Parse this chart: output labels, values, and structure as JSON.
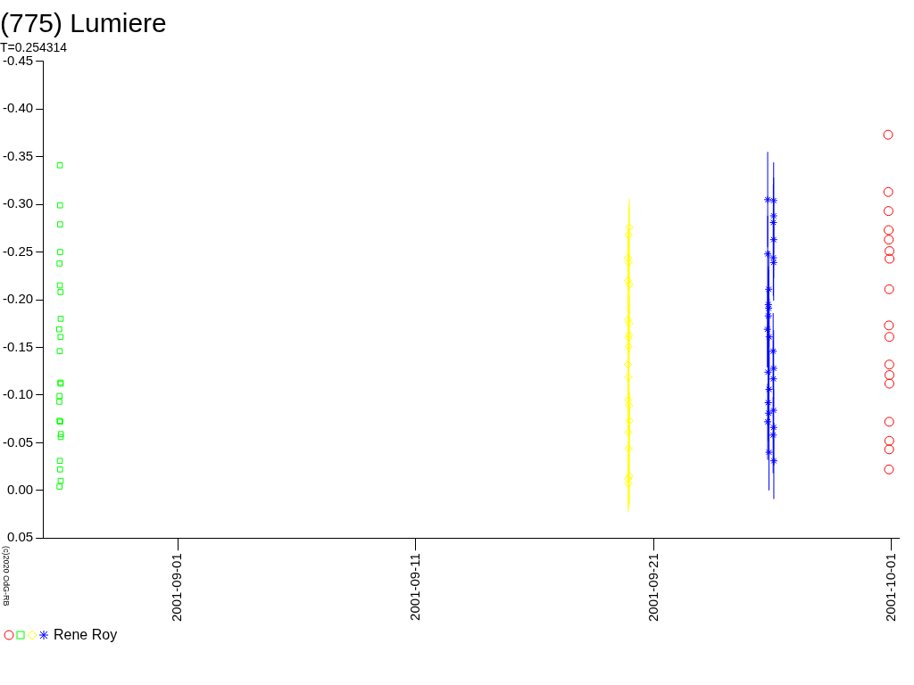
{
  "chart_data": {
    "type": "scatter",
    "title": "(775) Lumiere",
    "subtitle": "T=0.254314",
    "legend_title": "Rene Roy",
    "grid": false,
    "xlim": [
      "2001-08-26T08:00",
      "2001-10-01T08:00"
    ],
    "xticks": [
      "2001-09-01",
      "2001-09-11",
      "2001-09-21",
      "2001-10-01"
    ],
    "ylim": [
      0.05,
      -0.45
    ],
    "yticks": [
      -0.45,
      {
        "value": -0.4,
        "label": "-0.40"
      },
      -0.35,
      {
        "value": -0.3,
        "label": "-0.30"
      },
      -0.25,
      {
        "value": -0.2,
        "label": "-0.20"
      },
      -0.15,
      {
        "value": -0.1,
        "label": "-0.10"
      },
      -0.05,
      {
        "value": 0,
        "label": "0.00"
      },
      0.05
    ],
    "annotations": [
      "(c)2020 OdG-RB"
    ],
    "series": [
      {
        "color": "#ff0000",
        "marker": "circle",
        "x": [
          "2001-09-30T20:30",
          "2001-09-30T20:40",
          "2001-09-30T20:50",
          "2001-09-30T21:00",
          "2001-09-30T21:10",
          "2001-09-30T21:50",
          "2001-09-30T21:55",
          "2001-09-30T21:30",
          "2001-09-30T21:15",
          "2001-09-30T21:45",
          "2001-09-30T21:40",
          "2001-09-30T21:50",
          "2001-09-30T21:45",
          "2001-09-30T21:35",
          "2001-09-30T21:40",
          "2001-09-30T21:30",
          "2001-09-30T21:20"
        ],
        "values": [
          -0.373,
          -0.313,
          -0.293,
          -0.273,
          -0.263,
          -0.251,
          -0.243,
          -0.211,
          -0.173,
          -0.161,
          -0.132,
          -0.121,
          -0.112,
          -0.072,
          -0.052,
          -0.043,
          -0.022
        ]
      },
      {
        "color": "#00ff00",
        "marker": "square",
        "x": [
          "2001-08-27T01:00",
          "2001-08-27T01:10",
          "2001-08-27T01:15",
          "2001-08-27T01:20",
          "2001-08-27T00:40",
          "2001-08-27T01:00",
          "2001-08-27T01:40",
          "2001-08-27T01:50",
          "2001-08-27T00:20",
          "2001-08-27T01:40",
          "2001-08-27T00:50",
          "2001-08-27T01:30",
          "2001-08-27T01:50",
          "2001-08-27T00:40",
          "2001-08-27T00:30",
          "2001-08-27T00:40",
          "2001-08-27T01:20",
          "2001-08-27T02:00",
          "2001-08-27T01:50",
          "2001-08-27T01:00",
          "2001-08-27T01:10",
          "2001-08-27T01:50",
          "2001-08-27T00:40"
        ],
        "values": [
          -0.341,
          -0.299,
          -0.279,
          -0.25,
          -0.238,
          -0.215,
          -0.208,
          -0.18,
          -0.169,
          -0.161,
          -0.146,
          -0.113,
          -0.112,
          -0.099,
          -0.093,
          -0.073,
          -0.072,
          -0.059,
          -0.056,
          -0.031,
          -0.022,
          -0.01,
          -0.004
        ]
      },
      {
        "color": "#ffff00",
        "marker": "diamond",
        "x": [
          "2001-09-19T23:30",
          "2001-09-19T22:40",
          "2001-09-19T22:00",
          "2001-09-19T22:50",
          "2001-09-19T22:00",
          "2001-09-19T23:30",
          "2001-09-19T22:10",
          "2001-09-19T23:20",
          "2001-09-19T23:10",
          "2001-09-19T22:40",
          "2001-09-19T22:50",
          "2001-09-19T22:00",
          "2001-09-19T22:30",
          "2001-09-19T22:10",
          "2001-09-19T23:10",
          "2001-09-19T23:40",
          "2001-09-19T22:30",
          "2001-09-19T22:40",
          "2001-09-19T23:30",
          "2001-09-19T22:20",
          "2001-09-19T22:30"
        ],
        "values": [
          -0.276,
          -0.268,
          -0.244,
          -0.239,
          -0.22,
          -0.216,
          -0.179,
          -0.175,
          -0.163,
          -0.16,
          -0.151,
          -0.132,
          -0.119,
          -0.095,
          -0.089,
          -0.073,
          -0.061,
          -0.044,
          -0.015,
          -0.012,
          -0.007
        ],
        "errors": [
          0.03,
          0.03,
          0.03,
          0.03,
          0.03,
          0.03,
          0.03,
          0.03,
          0.03,
          0.03,
          0.03,
          0.03,
          0.03,
          0.03,
          0.03,
          0.03,
          0.03,
          0.03,
          0.03,
          0.03,
          0.03
        ]
      },
      {
        "color": "#0000ff",
        "marker": "cross",
        "x": [
          "2001-09-25T19:00",
          "2001-09-26T01:00",
          "2001-09-26T01:00",
          "2001-09-26T00:40",
          "2001-09-26T01:00",
          "2001-09-25T19:00",
          "2001-09-26T00:40",
          "2001-09-26T01:00",
          "2001-09-25T20:00",
          "2001-09-25T19:40",
          "2001-09-25T20:00",
          "2001-09-25T19:40",
          "2001-09-25T18:40",
          "2001-09-25T20:30",
          "2001-09-26T00:30",
          "2001-09-26T01:00",
          "2001-09-25T19:20",
          "2001-09-26T00:40",
          "2001-09-25T20:20",
          "2001-09-25T19:30",
          "2001-09-26T00:50",
          "2001-09-25T20:00",
          "2001-09-25T19:00",
          "2001-09-26T01:00",
          "2001-09-26T00:30",
          "2001-09-25T20:20",
          "2001-09-26T01:10"
        ],
        "values": [
          -0.305,
          -0.304,
          -0.288,
          -0.281,
          -0.263,
          -0.248,
          -0.244,
          -0.239,
          -0.211,
          -0.195,
          -0.191,
          -0.183,
          -0.169,
          -0.161,
          -0.146,
          -0.128,
          -0.124,
          -0.117,
          -0.106,
          -0.092,
          -0.084,
          -0.081,
          -0.072,
          -0.066,
          -0.058,
          -0.04,
          -0.031
        ],
        "errors": [
          0.05,
          0.04,
          0.04,
          0.04,
          0.04,
          0.04,
          0.04,
          0.04,
          0.04,
          0.04,
          0.04,
          0.04,
          0.04,
          0.04,
          0.04,
          0.04,
          0.04,
          0.04,
          0.04,
          0.04,
          0.04,
          0.04,
          0.04,
          0.04,
          0.04,
          0.04,
          0.04
        ]
      }
    ]
  }
}
